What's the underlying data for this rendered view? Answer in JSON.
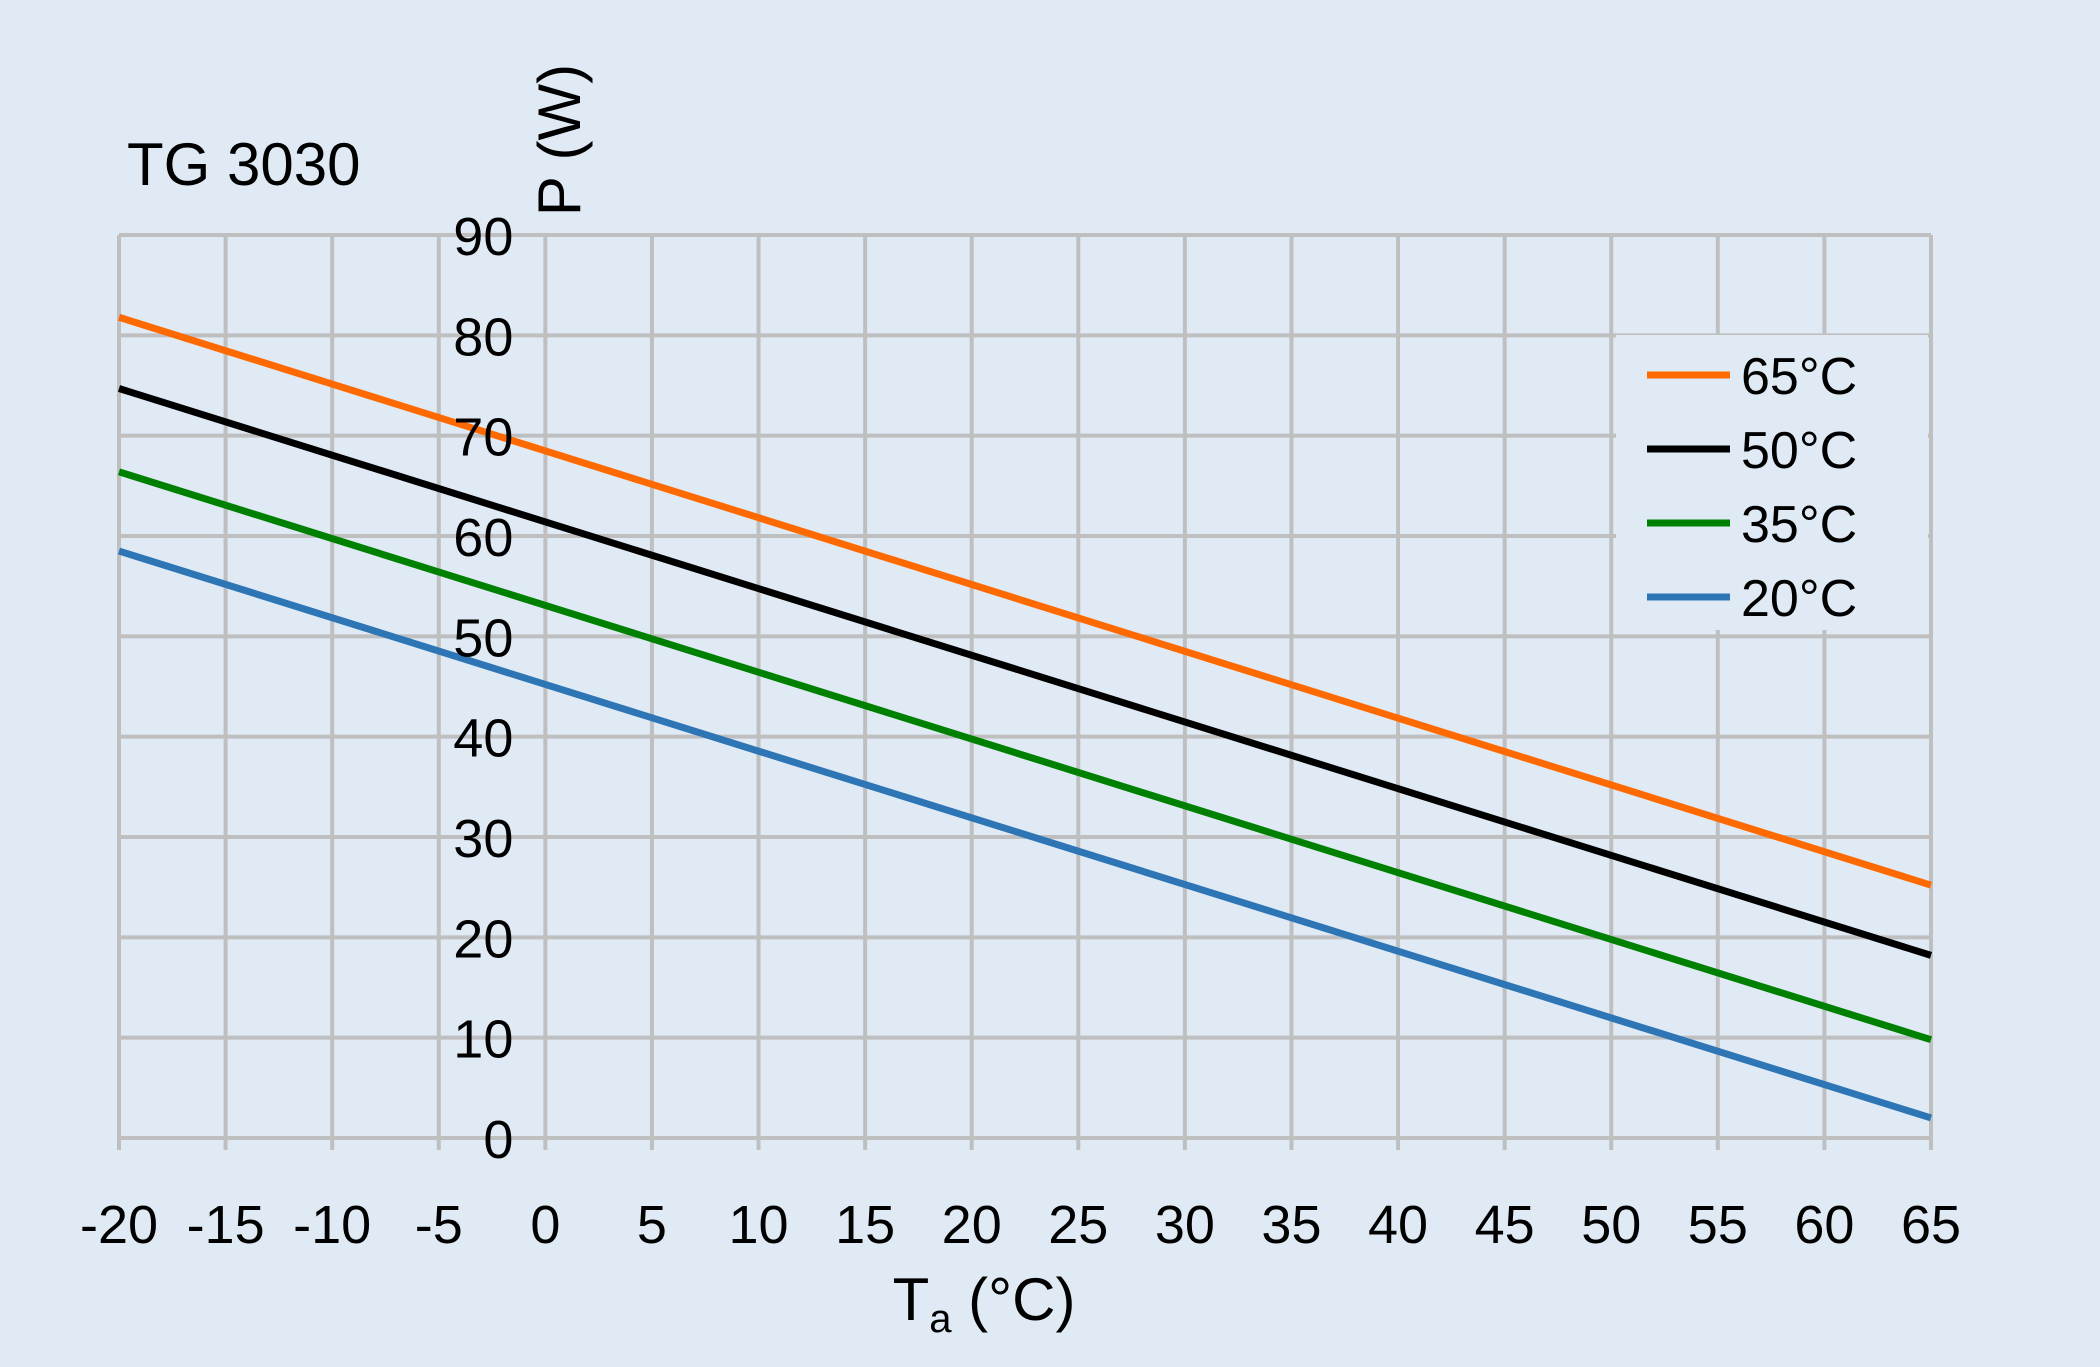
{
  "chart_data": {
    "type": "line",
    "title": "TG 3030",
    "xlabel": "T",
    "xlabel_sub": "a",
    "xlabel_unit": " (°C)",
    "ylabel": "P (W)",
    "xlim": [
      -20,
      65
    ],
    "ylim": [
      0,
      90
    ],
    "x_ticks": [
      -20,
      -15,
      -10,
      -5,
      0,
      5,
      10,
      15,
      20,
      25,
      30,
      35,
      40,
      45,
      50,
      55,
      60,
      65
    ],
    "y_ticks": [
      0,
      10,
      20,
      30,
      40,
      50,
      60,
      70,
      80,
      90
    ],
    "grid": true,
    "legend_position": "top-right",
    "x": [
      -20,
      65
    ],
    "series": [
      {
        "name": "65°C",
        "color": "#ff6a00",
        "values": [
          81.8,
          25.2
        ]
      },
      {
        "name": "50°C",
        "color": "#000000",
        "values": [
          74.7,
          18.2
        ]
      },
      {
        "name": "35°C",
        "color": "#008000",
        "values": [
          66.4,
          9.8
        ]
      },
      {
        "name": "20°C",
        "color": "#2e75b6",
        "values": [
          58.5,
          2.0
        ]
      }
    ]
  }
}
